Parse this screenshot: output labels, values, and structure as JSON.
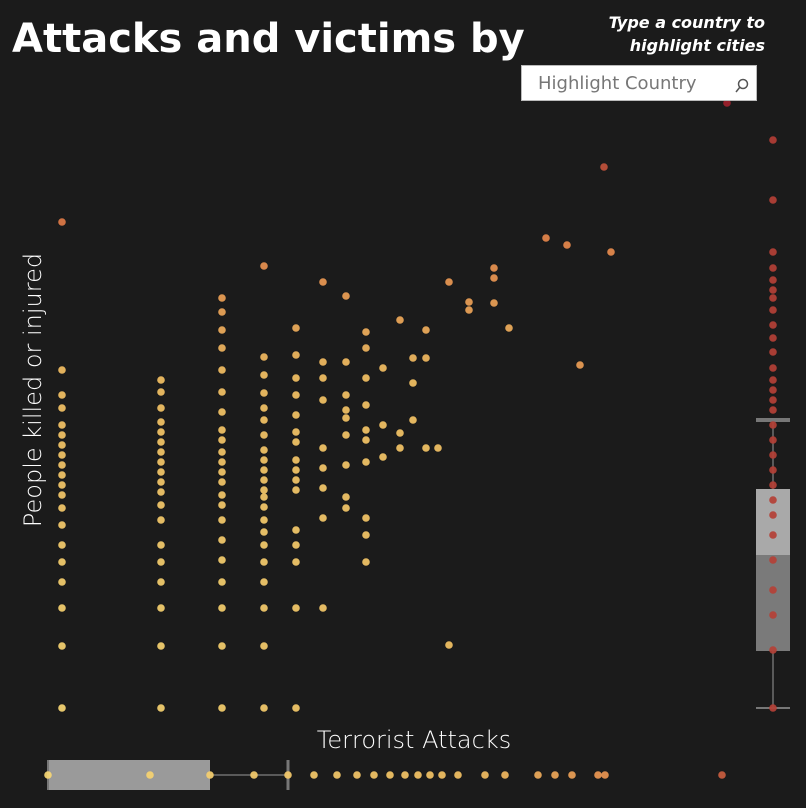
{
  "header": {
    "title": "Attacks and victims by",
    "hint_lines": [
      "Type a country to",
      "highlight cities"
    ],
    "search_placeholder": "Highlight Country"
  },
  "chart_data": {
    "type": "scatter",
    "x_label": "Terrorist Attacks",
    "y_label": "People killed or injured",
    "xlim": [
      0,
      742
    ],
    "ylim": [
      0,
      610
    ],
    "color_stops": [
      [
        0,
        "#f7d774"
      ],
      [
        0.55,
        "#f3c063"
      ],
      [
        0.78,
        "#e5834a"
      ],
      [
        1,
        "#9c1f2c"
      ]
    ],
    "x": [
      14,
      14,
      14,
      14,
      14,
      14,
      14,
      14,
      14,
      14,
      14,
      14,
      14,
      14,
      14,
      14,
      14,
      14,
      14,
      14,
      113,
      113,
      113,
      113,
      113,
      113,
      113,
      113,
      113,
      113,
      113,
      113,
      113,
      113,
      113,
      113,
      113,
      113,
      113,
      174,
      174,
      174,
      174,
      174,
      174,
      174,
      174,
      174,
      174,
      174,
      174,
      174,
      174,
      174,
      174,
      174,
      174,
      174,
      174,
      174,
      174,
      216,
      216,
      216,
      216,
      216,
      216,
      216,
      216,
      216,
      216,
      216,
      216,
      216,
      216,
      216,
      216,
      216,
      216,
      216,
      216,
      216,
      216,
      248,
      248,
      248,
      248,
      248,
      248,
      248,
      248,
      248,
      248,
      248,
      248,
      248,
      248,
      248,
      248,
      275,
      275,
      275,
      275,
      275,
      275,
      275,
      275,
      275,
      298,
      298,
      298,
      298,
      298,
      298,
      298,
      298,
      298,
      318,
      318,
      318,
      318,
      318,
      318,
      318,
      318,
      318,
      318,
      335,
      335,
      335,
      352,
      352,
      352,
      365,
      365,
      365,
      378,
      378,
      378,
      390,
      401,
      401,
      421,
      421,
      446,
      446,
      446,
      461,
      498,
      519,
      532,
      556,
      563,
      679,
      725,
      725,
      725,
      725,
      725,
      725,
      725,
      725,
      725,
      725,
      725,
      725,
      725,
      725,
      725,
      725,
      725,
      725,
      725,
      725,
      725,
      725,
      725,
      725,
      725,
      725,
      725,
      725,
      725
    ],
    "values": [
      488,
      340,
      315,
      302,
      285,
      275,
      265,
      255,
      245,
      235,
      225,
      215,
      202,
      185,
      165,
      148,
      128,
      102,
      64,
      2,
      330,
      318,
      302,
      288,
      278,
      268,
      258,
      248,
      238,
      228,
      218,
      205,
      190,
      165,
      148,
      128,
      102,
      64,
      2,
      412,
      398,
      380,
      362,
      340,
      318,
      298,
      280,
      270,
      258,
      248,
      238,
      228,
      215,
      205,
      190,
      170,
      150,
      128,
      102,
      64,
      2,
      444,
      353,
      335,
      317,
      302,
      290,
      275,
      260,
      250,
      240,
      230,
      220,
      213,
      203,
      190,
      178,
      165,
      148,
      128,
      102,
      64,
      2,
      382,
      355,
      332,
      315,
      295,
      278,
      268,
      250,
      240,
      230,
      220,
      180,
      165,
      148,
      102,
      2,
      428,
      348,
      332,
      310,
      262,
      242,
      222,
      192,
      102,
      414,
      348,
      315,
      300,
      292,
      275,
      245,
      213,
      202,
      378,
      362,
      332,
      305,
      280,
      270,
      248,
      192,
      175,
      148,
      342,
      285,
      253,
      390,
      277,
      262,
      352,
      327,
      290,
      380,
      352,
      262,
      262,
      428,
      65,
      408,
      400,
      442,
      432,
      407,
      382,
      472,
      465,
      345,
      543,
      458,
      607,
      570,
      510,
      458,
      442,
      430,
      420,
      412,
      400,
      385,
      372,
      358,
      342,
      330,
      320,
      310,
      300,
      285,
      270,
      255,
      240,
      225,
      210,
      195,
      175,
      150,
      120,
      95,
      60,
      2
    ],
    "x_marginal": [
      0,
      102,
      162,
      206,
      240,
      266,
      289,
      309,
      326,
      342,
      357,
      370,
      382,
      394,
      410,
      437,
      457,
      490,
      507,
      524,
      550,
      557,
      674
    ],
    "x_box": {
      "low": 0,
      "q1": 0,
      "q3": 162,
      "high": 240
    },
    "y_box": {
      "low": 2,
      "q1": 59,
      "median": 155,
      "q3": 221,
      "high": 290
    }
  }
}
